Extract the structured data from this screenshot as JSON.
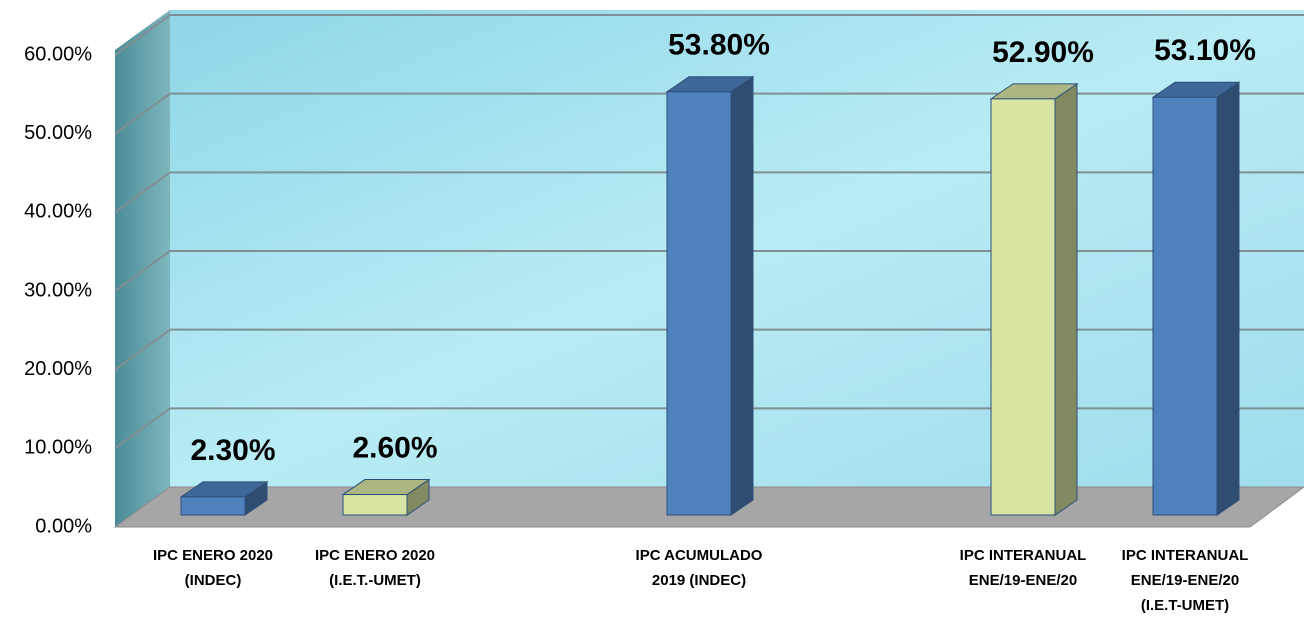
{
  "chart_data": {
    "type": "bar3d",
    "categories": [
      [
        "IPC ENERO 2020",
        "(INDEC)"
      ],
      [
        "IPC ENERO 2020",
        "(I.E.T.-UMET)"
      ],
      null,
      [
        "IPC ACUMULADO",
        "2019 (INDEC)"
      ],
      null,
      [
        "IPC INTERANUAL",
        "ENE/19-ENE/20"
      ],
      [
        "IPC INTERANUAL",
        "ENE/19-ENE/20",
        "(I.E.T-UMET)"
      ]
    ],
    "values": [
      2.3,
      2.6,
      null,
      53.8,
      null,
      52.9,
      53.1
    ],
    "value_labels": [
      "2.30%",
      "2.60%",
      null,
      "53.80%",
      null,
      "52.90%",
      "53.10%"
    ],
    "colors": [
      "#4f81bd",
      "#d7e4a2",
      null,
      "#4f81bd",
      null,
      "#d7e4a2",
      "#4f81bd"
    ],
    "ylim": [
      0,
      60
    ],
    "yticks": [
      {
        "value": 0,
        "label": "0.00%"
      },
      {
        "value": 10,
        "label": "10.00%"
      },
      {
        "value": 20,
        "label": "20.00%"
      },
      {
        "value": 30,
        "label": "30.00%"
      },
      {
        "value": 40,
        "label": "40.00%"
      },
      {
        "value": 50,
        "label": "50.00%"
      },
      {
        "value": 60,
        "label": "60.00%"
      }
    ],
    "grid": true
  }
}
